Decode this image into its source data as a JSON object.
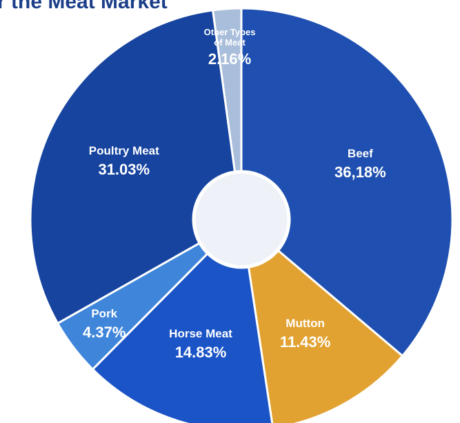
{
  "chart_data": {
    "type": "donut",
    "title": "r the Meat Market",
    "categories": [
      "Beef",
      "Mutton",
      "Horse Meat",
      "Pork",
      "Poultry Meat",
      "Other Types of Meat"
    ],
    "values": [
      36.18,
      11.43,
      14.83,
      4.37,
      31.03,
      2.16
    ],
    "value_labels": [
      "36,18%",
      "11.43%",
      "14.83%",
      "4.37%",
      "31.03%",
      "2.16%"
    ],
    "colors": [
      "#1f4fb0",
      "#e2a231",
      "#1b54c6",
      "#3f86da",
      "#16449f",
      "#a9bedb"
    ]
  }
}
